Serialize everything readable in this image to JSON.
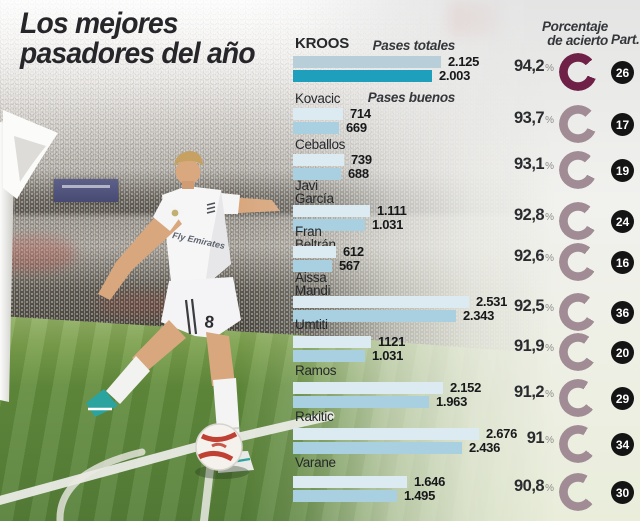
{
  "title": {
    "line1": "Los mejores",
    "line2": "pasadores del año"
  },
  "headers": {
    "pases_totales": "Pases totales",
    "pases_buenos": "Pases buenos",
    "porcentaje_line1": "Porcentaje",
    "porcentaje_line2": "de acierto",
    "part": "Part."
  },
  "photo": {
    "jersey_text": "Fly Emirates",
    "shorts_number": "8"
  },
  "colors": {
    "title_text": "#26262a",
    "bar_totales": "#dcebf1",
    "bar_buenos": "#a9d0e0",
    "highlight_bar_totales": "#b8cfda",
    "highlight_bar_buenos": "#1e9fbb",
    "donut": "#a18b95",
    "donut_highlight": "#6e2047",
    "badge_bg": "#141414",
    "badge_text": "#ffffff"
  },
  "chart_data": {
    "type": "bar",
    "orientation": "horizontal",
    "title": "Los mejores pasadores del año",
    "categories": [
      "Kroos",
      "Kovacic",
      "Ceballos",
      "Javi García",
      "Fran Beltrán",
      "Aissa Mandi",
      "Umtiti",
      "Ramos",
      "Rakitic",
      "Varane"
    ],
    "series": [
      {
        "name": "Pases totales",
        "values": [
          2125,
          714,
          739,
          1111,
          612,
          2531,
          1121,
          2152,
          2676,
          1646
        ]
      },
      {
        "name": "Pases buenos",
        "values": [
          2003,
          669,
          688,
          1031,
          567,
          2343,
          1031,
          1963,
          2436,
          1495
        ]
      }
    ],
    "accuracy_pct": [
      94.2,
      93.7,
      93.1,
      92.8,
      92.6,
      92.5,
      91.9,
      91.2,
      91,
      90.8
    ],
    "appearances": [
      26,
      17,
      19,
      24,
      16,
      36,
      20,
      29,
      34,
      30
    ],
    "x_axis_max": 2676,
    "legend_position": "inline-labels",
    "grid": false,
    "players": [
      {
        "name_lines": [
          "KROOS"
        ],
        "totales_label": "2.125",
        "buenos_label": "2.003",
        "pct_label": "94,2",
        "part": "26",
        "highlight": true
      },
      {
        "name_lines": [
          "Kovacic"
        ],
        "totales_label": "714",
        "buenos_label": "669",
        "pct_label": "93,7",
        "part": "17",
        "highlight": false
      },
      {
        "name_lines": [
          "Ceballos"
        ],
        "totales_label": "739",
        "buenos_label": "688",
        "pct_label": "93,1",
        "part": "19",
        "highlight": false
      },
      {
        "name_lines": [
          "Javi",
          "García"
        ],
        "totales_label": "1.111",
        "buenos_label": "1.031",
        "pct_label": "92,8",
        "part": "24",
        "highlight": false
      },
      {
        "name_lines": [
          "Fran",
          "Beltrán"
        ],
        "totales_label": "612",
        "buenos_label": "567",
        "pct_label": "92,6",
        "part": "16",
        "highlight": false
      },
      {
        "name_lines": [
          "Aissa",
          "Mandi"
        ],
        "totales_label": "2.531",
        "buenos_label": "2.343",
        "pct_label": "92,5",
        "part": "36",
        "highlight": false
      },
      {
        "name_lines": [
          "Umtiti"
        ],
        "totales_label": "1121",
        "buenos_label": "1.031",
        "pct_label": "91,9",
        "part": "20",
        "highlight": false
      },
      {
        "name_lines": [
          "Ramos"
        ],
        "totales_label": "2.152",
        "buenos_label": "1.963",
        "pct_label": "91,2",
        "part": "29",
        "highlight": false
      },
      {
        "name_lines": [
          "Rakitic"
        ],
        "totales_label": "2.676",
        "buenos_label": "2.436",
        "pct_label": "91",
        "part": "34",
        "highlight": false
      },
      {
        "name_lines": [
          "Varane"
        ],
        "totales_label": "1.646",
        "buenos_label": "1.495",
        "pct_label": "90,8",
        "part": "30",
        "highlight": false
      }
    ]
  }
}
